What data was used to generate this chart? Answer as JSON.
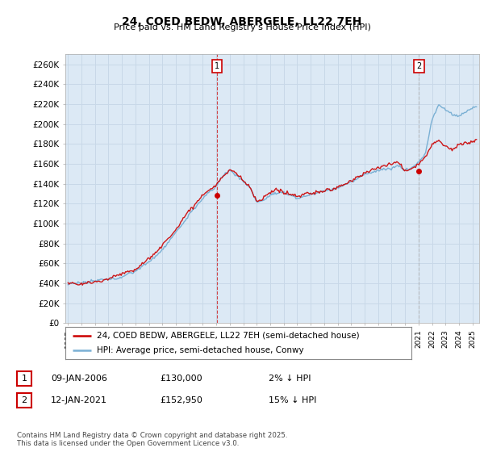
{
  "title": "24, COED BEDW, ABERGELE, LL22 7EH",
  "subtitle": "Price paid vs. HM Land Registry's House Price Index (HPI)",
  "ylabel_ticks": [
    "£0",
    "£20K",
    "£40K",
    "£60K",
    "£80K",
    "£100K",
    "£120K",
    "£140K",
    "£160K",
    "£180K",
    "£200K",
    "£220K",
    "£240K",
    "£260K"
  ],
  "ytick_values": [
    0,
    20000,
    40000,
    60000,
    80000,
    100000,
    120000,
    140000,
    160000,
    180000,
    200000,
    220000,
    240000,
    260000
  ],
  "ylim": [
    0,
    270000
  ],
  "hpi_color": "#7ab0d4",
  "price_color": "#cc0000",
  "vline1_color": "#cc0000",
  "vline2_color": "#aaaaaa",
  "grid_color": "#c8d8e8",
  "plot_bg_color": "#dce9f5",
  "background_color": "#ffffff",
  "sale1": {
    "date_x": 2006.03,
    "price": 128000,
    "label": "1"
  },
  "sale2": {
    "date_x": 2021.04,
    "price": 152950,
    "label": "2"
  },
  "legend_price_label": "24, COED BEDW, ABERGELE, LL22 7EH (semi-detached house)",
  "legend_hpi_label": "HPI: Average price, semi-detached house, Conwy",
  "footnote": "Contains HM Land Registry data © Crown copyright and database right 2025.\nThis data is licensed under the Open Government Licence v3.0.",
  "xmin": 1994.8,
  "xmax": 2025.5
}
